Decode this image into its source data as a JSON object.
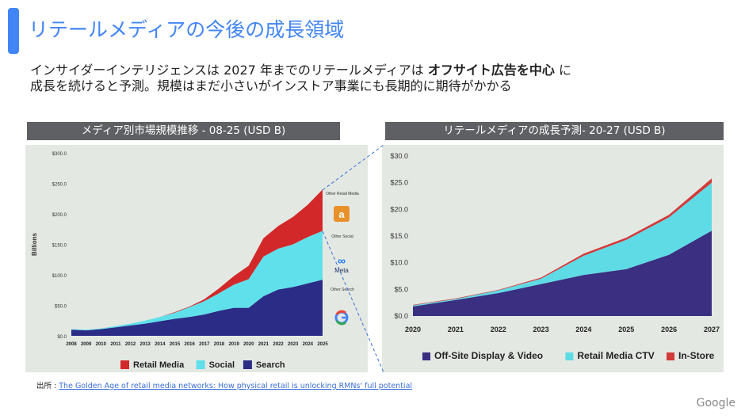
{
  "slide": {
    "title": "リテールメディアの今後の成長領域",
    "lead_line1_a": "インサイダーインテリジェンスは  2027 年までのリテールメディアは ",
    "lead_line1_bold": "オフサイト広告を中心",
    "lead_line1_b": " に",
    "lead_line2": "成長を続けると予測。規模はまだ小さいがインストア事業にも長期的に期待がかかる",
    "source_label": "出所 : ",
    "source_link": "The Golden Age of retail media networks: How physical retail is unlocking RMNs' full potential",
    "footer_brand": "Google",
    "accent_color": "#4285f4"
  },
  "chart_data": [
    {
      "type": "area",
      "stacked": true,
      "header": "メディア別市場規模推移 - 08-25 (USD B)",
      "ylabel": "Billions",
      "ylim": [
        0,
        300
      ],
      "yticks": [
        "$0.0",
        "$50.0",
        "$100.0",
        "$150.0",
        "$200.0",
        "$250.0",
        "$300.0"
      ],
      "x": [
        "2008",
        "2009",
        "2010",
        "2011",
        "2012",
        "2013",
        "2014",
        "2015",
        "2016",
        "2017",
        "2018",
        "2019",
        "2020",
        "2021",
        "2022",
        "2023",
        "2024",
        "2025"
      ],
      "series": [
        {
          "name": "Search",
          "color": "#2b2c86",
          "values": [
            10,
            9,
            11,
            14,
            17,
            20,
            24,
            28,
            31,
            35,
            41,
            46,
            46,
            65,
            76,
            80,
            86,
            92
          ]
        },
        {
          "name": "Social",
          "color": "#5fe0ea",
          "values": [
            1,
            1,
            1,
            2,
            3,
            5,
            7,
            10,
            16,
            22,
            29,
            38,
            47,
            65,
            67,
            70,
            76,
            80
          ]
        },
        {
          "name": "Retail Media",
          "color": "#d3282a",
          "values": [
            0,
            0,
            0,
            0,
            0,
            0,
            0,
            1,
            1,
            3,
            8,
            14,
            22,
            30,
            37,
            45,
            53,
            68
          ]
        }
      ],
      "side_labels": [
        "Other Retail Media",
        "Other Social",
        "Other Search"
      ],
      "side_icons": [
        "amazon-logo",
        "meta-logo",
        "google-logo"
      ],
      "meta_text": "Meta",
      "legend": "bottom"
    },
    {
      "type": "area",
      "stacked": true,
      "header": "リテールメディアの成長予測- 20-27 (USD B)",
      "ylim": [
        0,
        30
      ],
      "yticks": [
        "$0.0",
        "$5.0",
        "$10.0",
        "$15.0",
        "$20.0",
        "$25.0",
        "$30.0"
      ],
      "x": [
        "2020",
        "2021",
        "2022",
        "2023",
        "2024",
        "2025",
        "2026",
        "2027"
      ],
      "series": [
        {
          "name": "Off-Site Display & Video",
          "color": "#3a2f80",
          "values": [
            1.8,
            3.0,
            4.3,
            6.0,
            7.7,
            8.8,
            11.5,
            16.0
          ]
        },
        {
          "name": "Retail Media CTV",
          "color": "#5fdbe6",
          "values": [
            0.2,
            0.2,
            0.5,
            1.0,
            3.6,
            5.5,
            7.0,
            9.0
          ]
        },
        {
          "name": "In-Store",
          "color": "#d33a3a",
          "values": [
            0.1,
            0.1,
            0.1,
            0.2,
            0.4,
            0.4,
            0.5,
            0.8
          ]
        }
      ],
      "legend": "bottom"
    }
  ]
}
